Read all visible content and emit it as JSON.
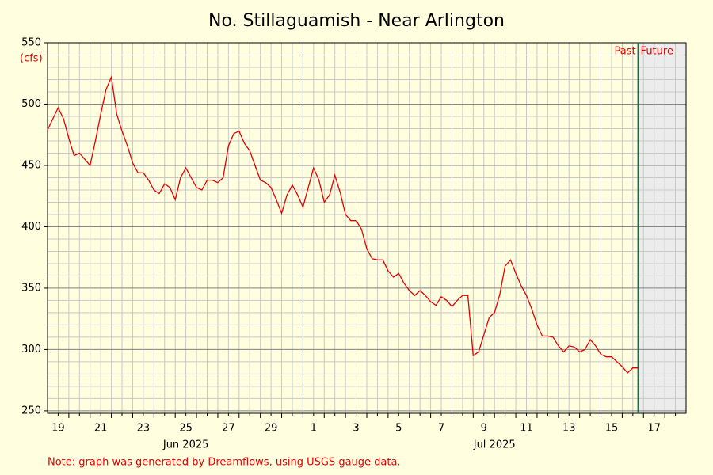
{
  "chart_data": {
    "type": "line",
    "title": "No. Stillaguamish - Near Arlington",
    "y_unit_label": "(cfs)",
    "note": "Note: graph was generated by Dreamflows, using USGS gauge data.",
    "now": "2025-07-16 18:00",
    "past_label": "Past",
    "future_label": "Future",
    "xlim": [
      "2025-06-19 00:00",
      "2025-07-19 00:00"
    ],
    "xticks": [
      {
        "value": "2025-06-19 12:00",
        "label": "19"
      },
      {
        "value": "2025-06-21 12:00",
        "label": "21"
      },
      {
        "value": "2025-06-23 12:00",
        "label": "23"
      },
      {
        "value": "2025-06-25 12:00",
        "label": "25"
      },
      {
        "value": "2025-06-27 12:00",
        "label": "27"
      },
      {
        "value": "2025-06-29 12:00",
        "label": "29"
      },
      {
        "value": "2025-07-01 12:00",
        "label": "1"
      },
      {
        "value": "2025-07-03 12:00",
        "label": "3"
      },
      {
        "value": "2025-07-05 12:00",
        "label": "5"
      },
      {
        "value": "2025-07-07 12:00",
        "label": "7"
      },
      {
        "value": "2025-07-09 12:00",
        "label": "9"
      },
      {
        "value": "2025-07-11 12:00",
        "label": "11"
      },
      {
        "value": "2025-07-13 12:00",
        "label": "13"
      },
      {
        "value": "2025-07-15 12:00",
        "label": "15"
      },
      {
        "value": "2025-07-17 12:00",
        "label": "17"
      }
    ],
    "month_labels": [
      {
        "value": "2025-06-25 12:00",
        "label": "Jun 2025"
      },
      {
        "value": "2025-07-10 00:00",
        "label": "Jul 2025"
      }
    ],
    "ylim": [
      248,
      550
    ],
    "yticks": [
      250,
      300,
      350,
      400,
      450,
      500,
      550
    ],
    "grid": true,
    "series": [
      {
        "color": "#e00000",
        "x": [
          "2025-06-19 00:00",
          "2025-06-19 06:00",
          "2025-06-19 12:00",
          "2025-06-19 18:00",
          "2025-06-20 00:00",
          "2025-06-20 06:00",
          "2025-06-20 12:00",
          "2025-06-20 18:00",
          "2025-06-21 00:00",
          "2025-06-21 06:00",
          "2025-06-21 12:00",
          "2025-06-21 18:00",
          "2025-06-22 00:00",
          "2025-06-22 06:00",
          "2025-06-22 12:00",
          "2025-06-22 18:00",
          "2025-06-23 00:00",
          "2025-06-23 06:00",
          "2025-06-23 12:00",
          "2025-06-23 18:00",
          "2025-06-24 00:00",
          "2025-06-24 06:00",
          "2025-06-24 12:00",
          "2025-06-24 18:00",
          "2025-06-25 00:00",
          "2025-06-25 06:00",
          "2025-06-25 12:00",
          "2025-06-25 18:00",
          "2025-06-26 00:00",
          "2025-06-26 06:00",
          "2025-06-26 12:00",
          "2025-06-26 18:00",
          "2025-06-27 00:00",
          "2025-06-27 06:00",
          "2025-06-27 12:00",
          "2025-06-27 18:00",
          "2025-06-28 00:00",
          "2025-06-28 06:00",
          "2025-06-28 12:00",
          "2025-06-28 18:00",
          "2025-06-29 00:00",
          "2025-06-29 06:00",
          "2025-06-29 12:00",
          "2025-06-29 18:00",
          "2025-06-30 00:00",
          "2025-06-30 06:00",
          "2025-06-30 12:00",
          "2025-06-30 18:00",
          "2025-07-01 00:00",
          "2025-07-01 06:00",
          "2025-07-01 12:00",
          "2025-07-01 18:00",
          "2025-07-02 00:00",
          "2025-07-02 06:00",
          "2025-07-02 12:00",
          "2025-07-02 18:00",
          "2025-07-03 00:00",
          "2025-07-03 06:00",
          "2025-07-03 12:00",
          "2025-07-03 18:00",
          "2025-07-04 00:00",
          "2025-07-04 06:00",
          "2025-07-04 12:00",
          "2025-07-04 18:00",
          "2025-07-05 00:00",
          "2025-07-05 06:00",
          "2025-07-05 12:00",
          "2025-07-05 18:00",
          "2025-07-06 00:00",
          "2025-07-06 06:00",
          "2025-07-06 12:00",
          "2025-07-06 18:00",
          "2025-07-07 00:00",
          "2025-07-07 06:00",
          "2025-07-07 12:00",
          "2025-07-07 18:00",
          "2025-07-08 00:00",
          "2025-07-08 06:00",
          "2025-07-08 12:00",
          "2025-07-08 18:00",
          "2025-07-09 00:00",
          "2025-07-09 06:00",
          "2025-07-09 12:00",
          "2025-07-09 18:00",
          "2025-07-10 00:00",
          "2025-07-10 06:00",
          "2025-07-10 12:00",
          "2025-07-10 18:00",
          "2025-07-11 00:00",
          "2025-07-11 06:00",
          "2025-07-11 12:00",
          "2025-07-11 18:00",
          "2025-07-12 00:00",
          "2025-07-12 06:00",
          "2025-07-12 12:00",
          "2025-07-12 18:00",
          "2025-07-13 00:00",
          "2025-07-13 06:00",
          "2025-07-13 12:00",
          "2025-07-13 18:00",
          "2025-07-14 00:00",
          "2025-07-14 06:00",
          "2025-07-14 12:00",
          "2025-07-14 18:00",
          "2025-07-15 00:00",
          "2025-07-15 06:00",
          "2025-07-15 12:00",
          "2025-07-15 18:00",
          "2025-07-16 00:00",
          "2025-07-16 06:00",
          "2025-07-16 12:00",
          "2025-07-16 18:00"
        ],
        "values": [
          479,
          488,
          497,
          488,
          472,
          458,
          460,
          455,
          450,
          470,
          492,
          512,
          522,
          492,
          478,
          466,
          452,
          444,
          444,
          438,
          430,
          427,
          435,
          432,
          422,
          440,
          448,
          440,
          432,
          430,
          438,
          438,
          436,
          440,
          466,
          476,
          478,
          468,
          462,
          450,
          438,
          436,
          432,
          422,
          411,
          426,
          434,
          426,
          416,
          432,
          448,
          438,
          420,
          426,
          442,
          428,
          410,
          405,
          405,
          398,
          382,
          374,
          373,
          373,
          364,
          359,
          362,
          354,
          348,
          344,
          348,
          344,
          339,
          336,
          343,
          340,
          335,
          340,
          344,
          344,
          295,
          298,
          312,
          326,
          330,
          345,
          368,
          373,
          362,
          352,
          344,
          333,
          320,
          311,
          311,
          310,
          303,
          298,
          303,
          302,
          298,
          300,
          308,
          303,
          296,
          294,
          294,
          290,
          286,
          281,
          285,
          285
        ]
      }
    ]
  }
}
